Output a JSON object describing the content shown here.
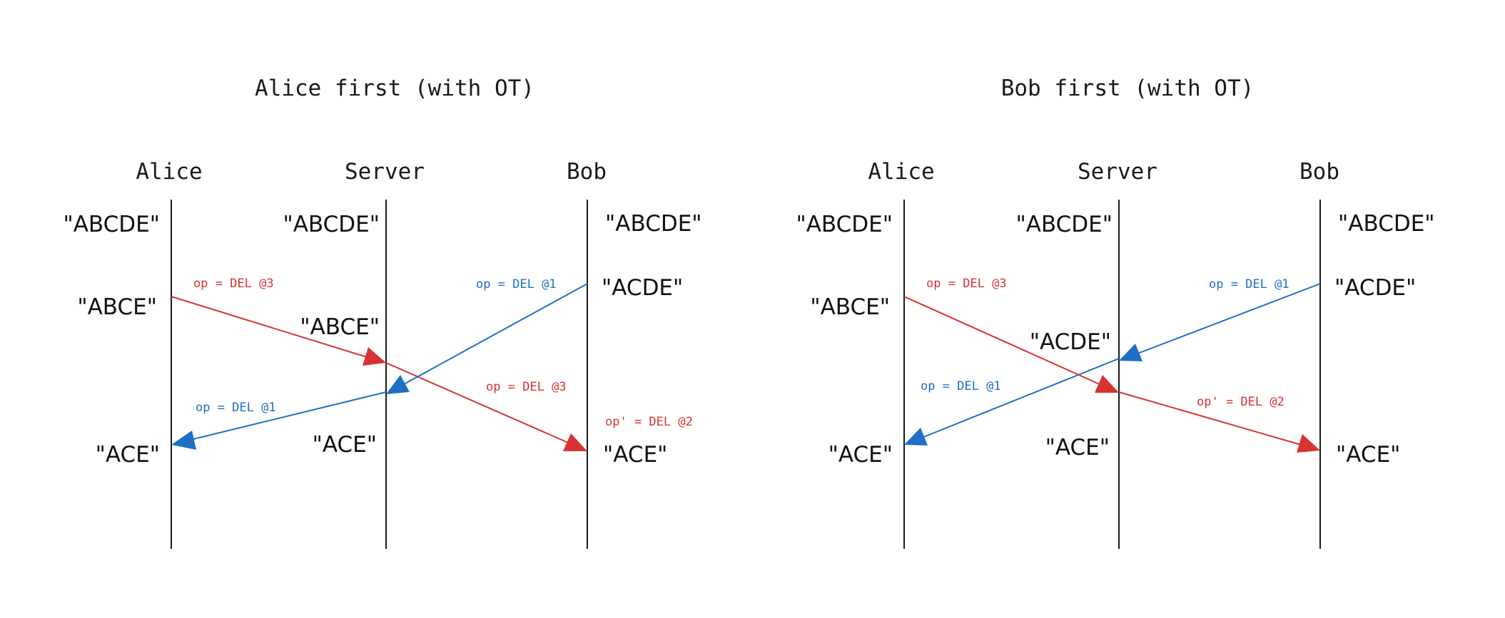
{
  "colors": {
    "red": "#d93232",
    "blue": "#1f6fc4",
    "ink": "#1a1a1a"
  },
  "panels": [
    {
      "title": "Alice first (with OT)",
      "actors": [
        "Alice",
        "Server",
        "Bob"
      ],
      "states": {
        "alice": [
          "\"ABCDE\"",
          "\"ABCE\"",
          "\"ACE\""
        ],
        "server": [
          "\"ABCDE\"",
          "\"ABCE\"",
          "\"ACE\""
        ],
        "bob": [
          "\"ABCDE\"",
          "\"ACDE\"",
          "\"ACE\""
        ]
      },
      "ops": {
        "alice_to_server": "op = DEL @3",
        "bob_to_server": "op = DEL @1",
        "server_to_alice": "op = DEL @1",
        "server_to_bob_original": "op = DEL @3",
        "server_to_bob_transformed": "op' = DEL @2"
      }
    },
    {
      "title": "Bob first (with OT)",
      "actors": [
        "Alice",
        "Server",
        "Bob"
      ],
      "states": {
        "alice": [
          "\"ABCDE\"",
          "\"ABCE\"",
          "\"ACE\""
        ],
        "server": [
          "\"ABCDE\"",
          "\"ACDE\"",
          "\"ACE\""
        ],
        "bob": [
          "\"ABCDE\"",
          "\"ACDE\"",
          "\"ACE\""
        ]
      },
      "ops": {
        "alice_to_server": "op = DEL @3",
        "bob_to_server": "op = DEL @1",
        "server_to_alice": "op = DEL @1",
        "server_to_bob_transformed": "op' = DEL @2"
      }
    }
  ]
}
